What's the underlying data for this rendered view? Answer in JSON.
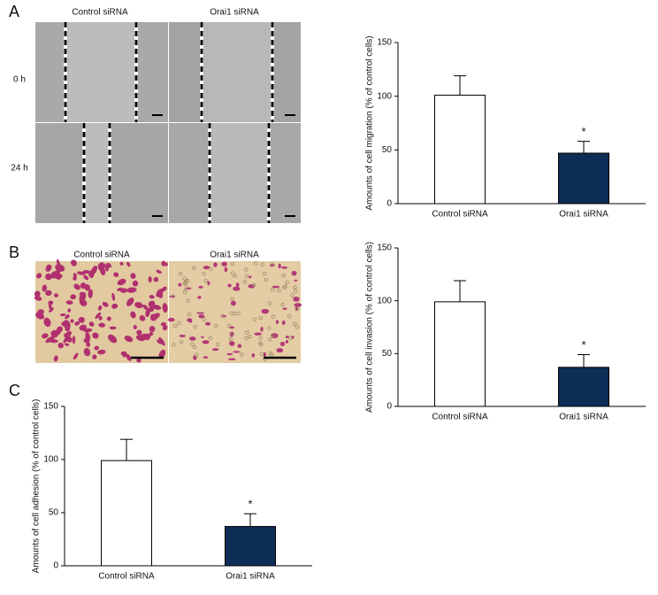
{
  "panels": {
    "labels": [
      "A",
      "B",
      "C"
    ],
    "migration_columns": [
      "Control siRNA",
      "Orai1 siRNA"
    ],
    "migration_rows": [
      "0 h",
      "24 h"
    ],
    "invasion_columns": [
      "Control siRNA",
      "Orai1 siRNA"
    ]
  },
  "chart_data": [
    {
      "type": "bar",
      "y_label": "Amounts of cell migration (% of control cells)",
      "categories": [
        "Control siRNA",
        "Orai1 siRNA"
      ],
      "values": [
        101,
        47
      ],
      "errors": [
        18,
        11
      ],
      "colors": [
        "#ffffff",
        "#0d2d57"
      ],
      "annotations": [
        {
          "category": "Orai1 siRNA",
          "text": "*"
        }
      ],
      "ylim": [
        0,
        150
      ],
      "yticks": [
        0,
        50,
        100,
        150
      ]
    },
    {
      "type": "bar",
      "y_label": "Amounts of cell invasion (% of control cells)",
      "categories": [
        "Control siRNA",
        "Orai1 siRNA"
      ],
      "values": [
        99,
        37
      ],
      "errors": [
        20,
        12
      ],
      "colors": [
        "#ffffff",
        "#0d2d57"
      ],
      "annotations": [
        {
          "category": "Orai1 siRNA",
          "text": "*"
        }
      ],
      "ylim": [
        0,
        150
      ],
      "yticks": [
        0,
        50,
        100,
        150
      ]
    },
    {
      "type": "bar",
      "y_label": "Amounts of cell adhesion (% of control cells)",
      "categories": [
        "Control siRNA",
        "Orai1 siRNA"
      ],
      "values": [
        99,
        37
      ],
      "errors": [
        20,
        12
      ],
      "colors": [
        "#ffffff",
        "#0d2d57"
      ],
      "annotations": [
        {
          "category": "Orai1 siRNA",
          "text": "*"
        }
      ],
      "ylim": [
        0,
        150
      ],
      "yticks": [
        0,
        50,
        100,
        150
      ]
    }
  ]
}
